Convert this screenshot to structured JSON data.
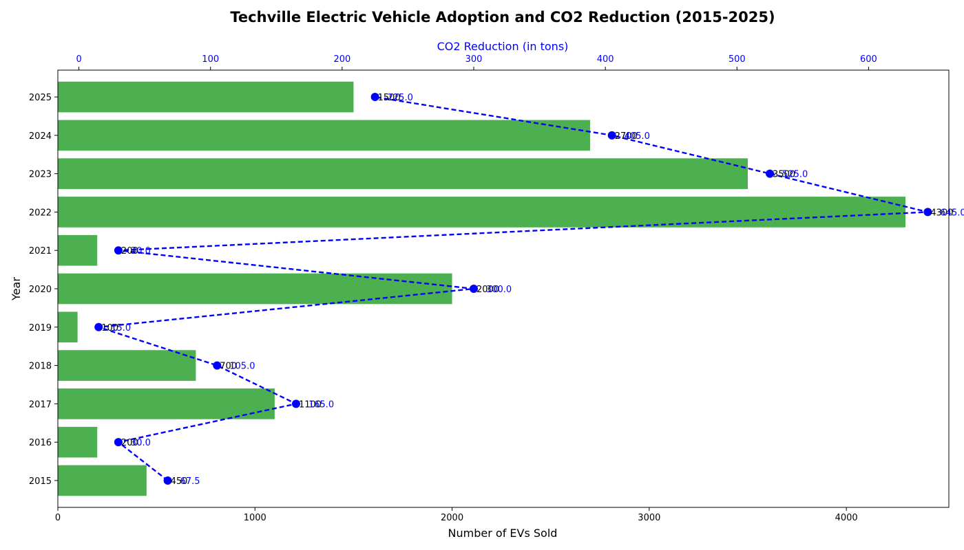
{
  "chart_data": {
    "type": "bar",
    "orientation": "horizontal",
    "title": "Techville Electric Vehicle Adoption and CO2 Reduction (2015-2025)",
    "xlabel": "Number of EVs Sold",
    "ylabel": "Year",
    "top_xlabel": "CO2 Reduction (in tons)",
    "categories": [
      "2015",
      "2016",
      "2017",
      "2018",
      "2019",
      "2020",
      "2021",
      "2022",
      "2023",
      "2024",
      "2025"
    ],
    "series": [
      {
        "values": [
          450,
          200,
          1100,
          700,
          100,
          2000,
          200,
          4300,
          3500,
          2700,
          1500
        ],
        "color": "#4caf50"
      },
      {
        "values": [
          67.5,
          30.0,
          165.0,
          105.0,
          15.0,
          300.0,
          30.0,
          645.0,
          525.0,
          405.0,
          225.0
        ],
        "color": "#0000ff",
        "style": "dashed-line-with-markers"
      }
    ],
    "bar_labels": [
      "450",
      "200",
      "1100",
      "700",
      "100",
      "2000",
      "200",
      "4300",
      "3500",
      "2700",
      "1500"
    ],
    "co2_labels": [
      "67.5",
      "30.0",
      "165.0",
      "105.0",
      "15.0",
      "300.0",
      "30.0",
      "645.0",
      "525.0",
      "405.0",
      "225.0"
    ],
    "xlim": [
      0,
      4520
    ],
    "xticks": [
      "0",
      "1000",
      "2000",
      "3000",
      "4000"
    ],
    "top_xlim": [
      -16,
      661
    ],
    "top_xticks": [
      "0",
      "100",
      "200",
      "300",
      "400",
      "500",
      "600"
    ],
    "grid": false,
    "legend": "none"
  }
}
